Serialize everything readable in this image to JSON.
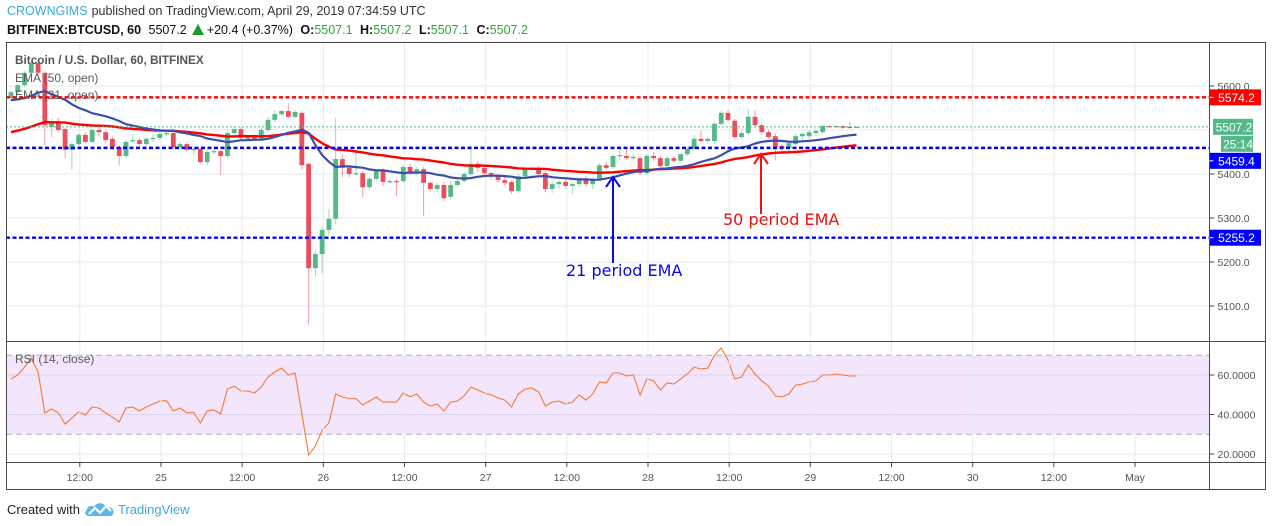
{
  "header": {
    "author": "CROWNGIMS",
    "published": "published on TradingView.com, April 29, 2019 07:34:59 UTC",
    "symbol": "BITFINEX:BTCUSD, 60",
    "last": "5507.2",
    "change": "+20.4 (+0.37%)",
    "ohlc": [
      {
        "k": "O:",
        "v": "5507.1"
      },
      {
        "k": "H:",
        "v": "5507.2"
      },
      {
        "k": "L:",
        "v": "5507.1"
      },
      {
        "k": "C:",
        "v": "5507.2"
      }
    ]
  },
  "legend": {
    "title": "Bitcoin / U.S. Dollar, 60, BITFINEX",
    "ema50": "EMA (50, open)",
    "ema21": "EMA (21, open)",
    "rsi": "RSI (14, close)"
  },
  "price_axis": {
    "ticks": [
      "5600.0",
      "5400.0",
      "5300.0",
      "5200.0",
      "5100.0"
    ]
  },
  "rsi_axis": {
    "ticks": [
      "60.0000",
      "40.0000",
      "20.0000"
    ]
  },
  "time_axis": {
    "labels": [
      "12:00",
      "25",
      "12:00",
      "26",
      "12:00",
      "27",
      "12:00",
      "28",
      "12:00",
      "29",
      "12:00",
      "30",
      "12:00",
      "May"
    ]
  },
  "price_tags": [
    {
      "label": "5574.2",
      "value": 5574.2,
      "bg": "#ff0000",
      "kind": "level"
    },
    {
      "label": "5507.2",
      "value": 5507.2,
      "bg": "#53b987",
      "kind": "last"
    },
    {
      "label": "25:14",
      "value": 5507.2,
      "bg": "#53b987",
      "kind": "countdown"
    },
    {
      "label": "5459.4",
      "value": 5459.4,
      "bg": "#0000ff",
      "kind": "level"
    },
    {
      "label": "5255.2",
      "value": 5255.2,
      "bg": "#0000ff",
      "kind": "level"
    }
  ],
  "annotations": [
    {
      "text": "21 period EMA",
      "color": "#0a0ae8"
    },
    {
      "text": "50 period EMA",
      "color": "#ee1111"
    }
  ],
  "footer": {
    "created_with": "Created with",
    "brand": "TradingView"
  },
  "chart_data": [
    {
      "type": "bar",
      "style": "candlestick",
      "title": "Bitcoin / U.S. Dollar, 60, BITFINEX",
      "interval": "60",
      "xlabel": "",
      "ylabel": "",
      "ylim": [
        5040,
        5700
      ],
      "x_tick_labels": [
        "12:00",
        "25",
        "12:00",
        "26",
        "12:00",
        "27",
        "12:00",
        "28",
        "12:00",
        "29",
        "12:00",
        "30",
        "12:00",
        "May"
      ],
      "y_tick_labels": [
        "5600.0",
        "5500.0",
        "5400.0",
        "5300.0",
        "5200.0",
        "5100.0"
      ],
      "grid": true,
      "colors": {
        "up": "#53b987",
        "down": "#eb4d5c",
        "ema21": "#3b4fa8",
        "ema50": "#ff0000"
      },
      "ohlc_columns": [
        "open",
        "high",
        "low",
        "close"
      ],
      "candles": [
        [
          5573,
          5590,
          5566,
          5586
        ],
        [
          5586,
          5605,
          5580,
          5602
        ],
        [
          5602,
          5634,
          5598,
          5630
        ],
        [
          5630,
          5656,
          5626,
          5652
        ],
        [
          5652,
          5656,
          5626,
          5630
        ],
        [
          5630,
          5634,
          5466,
          5511
        ],
        [
          5507,
          5525,
          5484,
          5520
        ],
        [
          5518,
          5527,
          5495,
          5500
        ],
        [
          5502,
          5505,
          5436,
          5455
        ],
        [
          5455,
          5473,
          5409,
          5468
        ],
        [
          5468,
          5493,
          5464,
          5489
        ],
        [
          5489,
          5495,
          5470,
          5473
        ],
        [
          5473,
          5505,
          5470,
          5500
        ],
        [
          5500,
          5507,
          5486,
          5495
        ],
        [
          5495,
          5500,
          5470,
          5477
        ],
        [
          5480,
          5484,
          5455,
          5461
        ],
        [
          5461,
          5466,
          5420,
          5441
        ],
        [
          5441,
          5477,
          5436,
          5473
        ],
        [
          5475,
          5491,
          5470,
          5477
        ],
        [
          5477,
          5482,
          5464,
          5468
        ],
        [
          5468,
          5484,
          5464,
          5480
        ],
        [
          5480,
          5489,
          5473,
          5482
        ],
        [
          5482,
          5495,
          5477,
          5491
        ],
        [
          5491,
          5498,
          5486,
          5493
        ],
        [
          5493,
          5495,
          5457,
          5461
        ],
        [
          5461,
          5473,
          5455,
          5468
        ],
        [
          5468,
          5473,
          5450,
          5455
        ],
        [
          5455,
          5461,
          5445,
          5457
        ],
        [
          5457,
          5459,
          5423,
          5427
        ],
        [
          5427,
          5455,
          5420,
          5450
        ],
        [
          5450,
          5455,
          5445,
          5452
        ],
        [
          5452,
          5455,
          5398,
          5441
        ],
        [
          5441,
          5498,
          5436,
          5493
        ],
        [
          5493,
          5509,
          5486,
          5502
        ],
        [
          5502,
          5507,
          5477,
          5482
        ],
        [
          5480,
          5489,
          5475,
          5484
        ],
        [
          5484,
          5489,
          5477,
          5480
        ],
        [
          5480,
          5505,
          5477,
          5500
        ],
        [
          5500,
          5530,
          5495,
          5523
        ],
        [
          5523,
          5545,
          5518,
          5536
        ],
        [
          5536,
          5545,
          5532,
          5543
        ],
        [
          5543,
          5561,
          5527,
          5530
        ],
        [
          5530,
          5545,
          5527,
          5541
        ],
        [
          5539,
          5543,
          5411,
          5420
        ],
        [
          5423,
          5425,
          5057,
          5186
        ],
        [
          5186,
          5225,
          5168,
          5218
        ],
        [
          5218,
          5280,
          5175,
          5273
        ],
        [
          5273,
          5320,
          5261,
          5298
        ],
        [
          5298,
          5527,
          5286,
          5434
        ],
        [
          5434,
          5445,
          5393,
          5414
        ],
        [
          5414,
          5418,
          5393,
          5400
        ],
        [
          5400,
          5450,
          5395,
          5402
        ],
        [
          5402,
          5407,
          5348,
          5370
        ],
        [
          5370,
          5393,
          5364,
          5389
        ],
        [
          5389,
          5411,
          5384,
          5407
        ],
        [
          5407,
          5414,
          5373,
          5382
        ],
        [
          5382,
          5389,
          5377,
          5384
        ],
        [
          5384,
          5389,
          5350,
          5382
        ],
        [
          5384,
          5420,
          5380,
          5416
        ],
        [
          5416,
          5423,
          5398,
          5402
        ],
        [
          5402,
          5416,
          5395,
          5411
        ],
        [
          5411,
          5416,
          5305,
          5380
        ],
        [
          5380,
          5384,
          5359,
          5366
        ],
        [
          5366,
          5380,
          5359,
          5375
        ],
        [
          5375,
          5382,
          5339,
          5345
        ],
        [
          5348,
          5384,
          5343,
          5375
        ],
        [
          5375,
          5389,
          5370,
          5384
        ],
        [
          5384,
          5405,
          5380,
          5400
        ],
        [
          5400,
          5466,
          5395,
          5423
        ],
        [
          5423,
          5430,
          5405,
          5414
        ],
        [
          5414,
          5418,
          5395,
          5402
        ],
        [
          5402,
          5407,
          5389,
          5395
        ],
        [
          5395,
          5400,
          5380,
          5386
        ],
        [
          5386,
          5393,
          5375,
          5380
        ],
        [
          5382,
          5386,
          5355,
          5361
        ],
        [
          5361,
          5400,
          5357,
          5395
        ],
        [
          5395,
          5416,
          5389,
          5411
        ],
        [
          5411,
          5416,
          5405,
          5414
        ],
        [
          5411,
          5418,
          5395,
          5400
        ],
        [
          5402,
          5407,
          5359,
          5366
        ],
        [
          5366,
          5382,
          5357,
          5377
        ],
        [
          5377,
          5386,
          5368,
          5382
        ],
        [
          5382,
          5389,
          5366,
          5373
        ],
        [
          5373,
          5380,
          5355,
          5377
        ],
        [
          5377,
          5393,
          5370,
          5389
        ],
        [
          5389,
          5395,
          5373,
          5377
        ],
        [
          5377,
          5393,
          5366,
          5389
        ],
        [
          5389,
          5425,
          5384,
          5420
        ],
        [
          5420,
          5427,
          5409,
          5414
        ],
        [
          5416,
          5445,
          5411,
          5441
        ],
        [
          5441,
          5455,
          5432,
          5443
        ],
        [
          5441,
          5459,
          5432,
          5436
        ],
        [
          5436,
          5445,
          5430,
          5439
        ],
        [
          5436,
          5441,
          5398,
          5402
        ],
        [
          5402,
          5445,
          5398,
          5441
        ],
        [
          5441,
          5450,
          5430,
          5436
        ],
        [
          5436,
          5441,
          5411,
          5418
        ],
        [
          5418,
          5441,
          5414,
          5436
        ],
        [
          5436,
          5441,
          5425,
          5430
        ],
        [
          5430,
          5448,
          5427,
          5445
        ],
        [
          5445,
          5461,
          5441,
          5457
        ],
        [
          5457,
          5489,
          5452,
          5480
        ],
        [
          5480,
          5498,
          5470,
          5475
        ],
        [
          5475,
          5484,
          5470,
          5480
        ],
        [
          5475,
          5518,
          5470,
          5514
        ],
        [
          5514,
          5543,
          5509,
          5539
        ],
        [
          5539,
          5545,
          5518,
          5523
        ],
        [
          5521,
          5525,
          5480,
          5484
        ],
        [
          5484,
          5498,
          5480,
          5493
        ],
        [
          5493,
          5548,
          5489,
          5530
        ],
        [
          5530,
          5545,
          5507,
          5511
        ],
        [
          5511,
          5516,
          5489,
          5495
        ],
        [
          5495,
          5500,
          5480,
          5484
        ],
        [
          5486,
          5491,
          5432,
          5461
        ],
        [
          5464,
          5468,
          5448,
          5459
        ],
        [
          5459,
          5475,
          5445,
          5470
        ],
        [
          5468,
          5491,
          5464,
          5486
        ],
        [
          5486,
          5495,
          5475,
          5491
        ],
        [
          5486,
          5500,
          5480,
          5495
        ],
        [
          5493,
          5502,
          5486,
          5498
        ],
        [
          5495,
          5511,
          5491,
          5509
        ],
        [
          5509,
          5511,
          5505,
          5507
        ],
        [
          5507,
          5511,
          5505,
          5509
        ],
        [
          5509,
          5511,
          5502,
          5505
        ],
        [
          5507,
          5518,
          5505,
          5505
        ],
        [
          5507.1,
          5507.2,
          5507.1,
          5507.2
        ]
      ],
      "series": [
        {
          "name": "EMA (21, open)",
          "period": 21,
          "source": "open",
          "start_value": 5568,
          "end_value_approx": 5490
        },
        {
          "name": "EMA (50, open)",
          "period": 50,
          "source": "open",
          "start_value": 5495,
          "end_value_approx": 5466
        }
      ],
      "horizontal_levels": [
        {
          "value": 5574.2,
          "color": "#ff0000"
        },
        {
          "value": 5459.4,
          "color": "#0000ff"
        },
        {
          "value": 5255.2,
          "color": "#0000ff"
        }
      ],
      "last_price": 5507.2,
      "annotations": [
        "21 period EMA",
        "50 period EMA"
      ]
    },
    {
      "type": "line",
      "title": "RSI (14, close)",
      "xlabel": "",
      "ylabel": "",
      "ylim": [
        16,
        78
      ],
      "y_tick_labels": [
        "60.0000",
        "40.0000",
        "20.0000"
      ],
      "bands": {
        "upper": 70,
        "lower": 30,
        "fill": "#f3e6fc"
      },
      "color": "#f47a35",
      "values": [
        58,
        60,
        64,
        68.5,
        61.5,
        40.8,
        42.8,
        40.8,
        35.2,
        38.2,
        41.3,
        39.7,
        43.8,
        43.3,
        40.8,
        38.7,
        36.2,
        43.3,
        43.8,
        41.8,
        43.8,
        45.3,
        46.8,
        47,
        41.8,
        43.3,
        40.8,
        41,
        35.7,
        41.8,
        42.3,
        40.3,
        52.9,
        54.4,
        51.9,
        51.9,
        50.9,
        53.9,
        59,
        61.5,
        63.5,
        60,
        61,
        40.3,
        19.5,
        24,
        32,
        35.7,
        50.4,
        48.9,
        48.1,
        48,
        44.8,
        46.8,
        48.9,
        46.3,
        46.3,
        46.3,
        50.9,
        48.9,
        50.4,
        46.3,
        44.3,
        45.3,
        41.8,
        46.3,
        46.8,
        49.4,
        53.9,
        52.4,
        50.9,
        49.9,
        48.4,
        47.3,
        43.8,
        50.4,
        52.9,
        53.4,
        51.4,
        44.3,
        46.3,
        46.8,
        45.3,
        46.3,
        49.9,
        47.3,
        50.4,
        56.5,
        55.9,
        61,
        61,
        59.5,
        60,
        49.9,
        58,
        57,
        52.4,
        56,
        55.4,
        58,
        60.5,
        64,
        63,
        63.5,
        70,
        73.7,
        67.6,
        58,
        59,
        65,
        60.5,
        57,
        54.4,
        49.4,
        48.9,
        50.4,
        54.9,
        55.4,
        56.5,
        57,
        60,
        60,
        60.5,
        60,
        59.5,
        59.5
      ]
    }
  ]
}
